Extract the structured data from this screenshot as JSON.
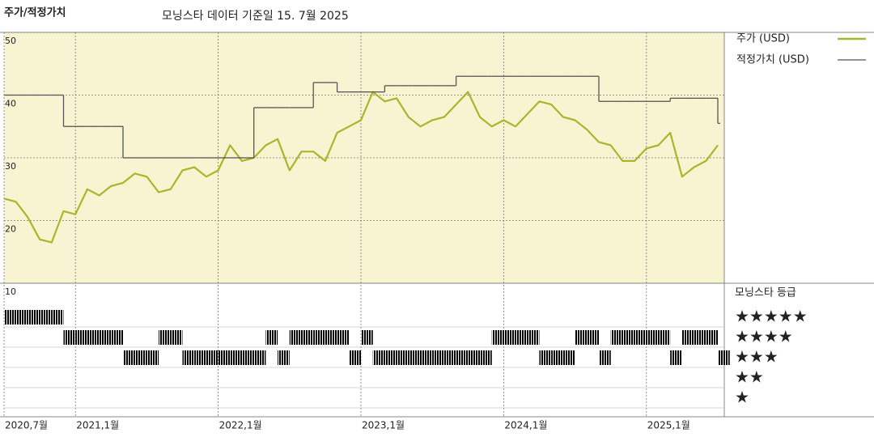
{
  "chart_data": {
    "type": "line",
    "title": "주가/적정가치",
    "subtitle": "모닝스타 데이터 기준일 15. 7월 2025",
    "x": [
      "2020-07",
      "2020-08",
      "2020-09",
      "2020-10",
      "2020-11",
      "2020-12",
      "2021-01",
      "2021-02",
      "2021-03",
      "2021-04",
      "2021-05",
      "2021-06",
      "2021-07",
      "2021-08",
      "2021-09",
      "2021-10",
      "2021-11",
      "2021-12",
      "2022-01",
      "2022-02",
      "2022-03",
      "2022-04",
      "2022-05",
      "2022-06",
      "2022-07",
      "2022-08",
      "2022-09",
      "2022-10",
      "2022-11",
      "2022-12",
      "2023-01",
      "2023-02",
      "2023-03",
      "2023-04",
      "2023-05",
      "2023-06",
      "2023-07",
      "2023-08",
      "2023-09",
      "2023-10",
      "2023-11",
      "2023-12",
      "2024-01",
      "2024-02",
      "2024-03",
      "2024-04",
      "2024-05",
      "2024-06",
      "2024-07",
      "2024-08",
      "2024-09",
      "2024-10",
      "2024-11",
      "2024-12",
      "2025-01",
      "2025-02",
      "2025-03",
      "2025-04",
      "2025-05",
      "2025-06",
      "2025-07"
    ],
    "series": [
      {
        "name": "주가 (USD)",
        "color": "#a9b62c",
        "values": [
          23.5,
          23,
          20.5,
          17,
          16.5,
          21.5,
          21,
          25,
          24,
          25.5,
          26,
          27.5,
          27,
          24.5,
          25,
          28,
          28.5,
          27,
          28,
          32,
          29.5,
          30,
          32,
          33,
          28,
          31,
          31,
          29.5,
          34,
          35,
          36,
          40.5,
          39,
          39.5,
          36.5,
          35,
          36,
          36.5,
          38.5,
          40.5,
          36.5,
          35,
          36,
          35,
          37,
          39,
          38.5,
          36.5,
          36,
          34.5,
          32.5,
          32,
          29.5,
          29.5,
          31.5,
          32,
          34,
          27,
          28.5,
          29.5,
          32
        ]
      },
      {
        "name": "적정가치 (USD)",
        "color": "#555555",
        "values": [
          40,
          40,
          40,
          40,
          40,
          35,
          35,
          35,
          35,
          35,
          30,
          30,
          30,
          30,
          30,
          30,
          30,
          30,
          30,
          30,
          30,
          38,
          38,
          38,
          38,
          38,
          42,
          42,
          40.5,
          40.5,
          40.5,
          40.5,
          41.5,
          41.5,
          41.5,
          41.5,
          41.5,
          41.5,
          43,
          43,
          43,
          43,
          43,
          43,
          43,
          43,
          43,
          43,
          43,
          43,
          39,
          39,
          39,
          39,
          39,
          39,
          39.5,
          39.5,
          39.5,
          39.5,
          35.5
        ]
      }
    ],
    "xlim": [
      "2020-07",
      "2025-07"
    ],
    "xticks": [
      {
        "value": "2020-07",
        "label": "2020,7월"
      },
      {
        "value": "2021-01",
        "label": "2021,1월"
      },
      {
        "value": "2022-01",
        "label": "2022,1월"
      },
      {
        "value": "2023-01",
        "label": "2023,1월"
      },
      {
        "value": "2024-01",
        "label": "2024,1월"
      },
      {
        "value": "2025-01",
        "label": "2025,1월"
      }
    ],
    "ylim": [
      10,
      50
    ],
    "yticks": [
      10,
      20,
      30,
      40,
      50
    ],
    "grid": true,
    "background": "#f8f4d2",
    "rating": {
      "title": "모닝스타 등급",
      "values": [
        5,
        5,
        5,
        5,
        5,
        4,
        4,
        4,
        4,
        4,
        3,
        3,
        3,
        4,
        4,
        3,
        3,
        3,
        3,
        3,
        3,
        3,
        4,
        3,
        4,
        4,
        4,
        4,
        4,
        3,
        4,
        3,
        3,
        3,
        3,
        3,
        3,
        3,
        3,
        3,
        3,
        4,
        4,
        4,
        4,
        3,
        3,
        3,
        4,
        4,
        3,
        4,
        4,
        4,
        4,
        4,
        3,
        4,
        4,
        4,
        3
      ],
      "ticks": [
        {
          "value": 5,
          "label": "★★★★★"
        },
        {
          "value": 4,
          "label": "★★★★"
        },
        {
          "value": 3,
          "label": "★★★"
        },
        {
          "value": 2,
          "label": "★★"
        },
        {
          "value": 1,
          "label": "★"
        }
      ],
      "colors": {
        "5": "#2f8a6a",
        "4": "#333333",
        "3": "#333333",
        "2": "#333333",
        "1": "#333333"
      }
    }
  }
}
